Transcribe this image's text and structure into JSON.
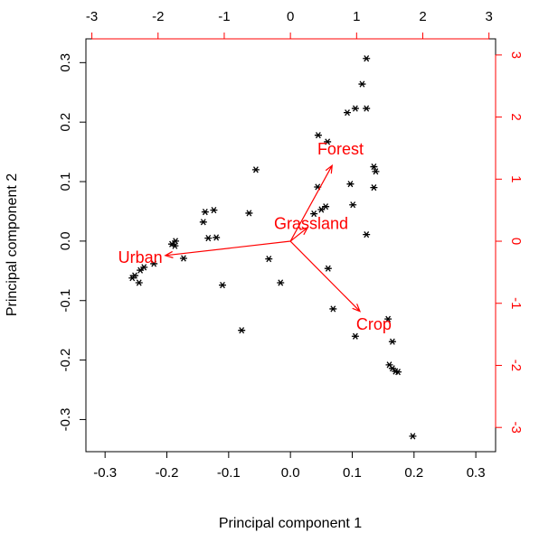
{
  "chart_data": {
    "type": "biplot",
    "xlabel": "Principal component 1",
    "ylabel": "Principal component 2",
    "xlim": [
      -0.331,
      0.332
    ],
    "ylim": [
      -0.354,
      0.34
    ],
    "xticks": [
      -0.3,
      -0.2,
      -0.1,
      {
        "value": 0,
        "label": "0.0"
      },
      0.1,
      0.2,
      0.3
    ],
    "yticks": [
      -0.3,
      -0.2,
      -0.1,
      {
        "value": 0,
        "label": "0.0"
      },
      0.1,
      0.2,
      0.3
    ],
    "x2lim": [
      -3.09,
      3.1
    ],
    "y2lim": [
      -3.39,
      3.26
    ],
    "x2ticks": [
      -3,
      -2,
      -1,
      0,
      1,
      2,
      3
    ],
    "y2ticks": [
      -3,
      -2,
      -1,
      0,
      1,
      2,
      3
    ],
    "color": "#000000",
    "x": [
      0.123,
      0.116,
      0.105,
      0.123,
      0.092,
      0.045,
      0.06,
      -0.056,
      0.135,
      0.138,
      0.044,
      0.097,
      0.135,
      0.057,
      0.05,
      0.038,
      0.101,
      -0.138,
      -0.124,
      -0.067,
      -0.141,
      -0.133,
      -0.12,
      0.123,
      -0.186,
      -0.192,
      -0.187,
      -0.221,
      -0.173,
      -0.237,
      -0.243,
      -0.252,
      -0.256,
      -0.245,
      -0.035,
      0.061,
      -0.11,
      -0.016,
      0.069,
      -0.079,
      0.105,
      0.158,
      0.165,
      0.16,
      0.165,
      0.17,
      0.174,
      0.198
    ],
    "y": [
      0.307,
      0.264,
      0.223,
      0.223,
      0.216,
      0.178,
      0.167,
      0.12,
      0.125,
      0.117,
      0.091,
      0.096,
      0.09,
      0.058,
      0.053,
      0.046,
      0.061,
      0.049,
      0.052,
      0.047,
      0.032,
      0.005,
      0.006,
      0.011,
      0,
      -0.005,
      -0.008,
      -0.038,
      -0.029,
      -0.044,
      -0.049,
      -0.058,
      -0.062,
      -0.07,
      -0.03,
      -0.046,
      -0.074,
      -0.07,
      -0.114,
      -0.15,
      -0.16,
      -0.131,
      -0.169,
      -0.208,
      -0.214,
      -0.219,
      -0.22,
      -0.328
    ],
    "arrows": {
      "color": "#ff0000",
      "names": [
        "Forest",
        "Grassland",
        "Urban",
        "Crop"
      ],
      "x": [
        0.63,
        0.26,
        -1.89,
        1.05
      ],
      "y": [
        1.22,
        0.22,
        -0.23,
        -1.13
      ]
    }
  }
}
